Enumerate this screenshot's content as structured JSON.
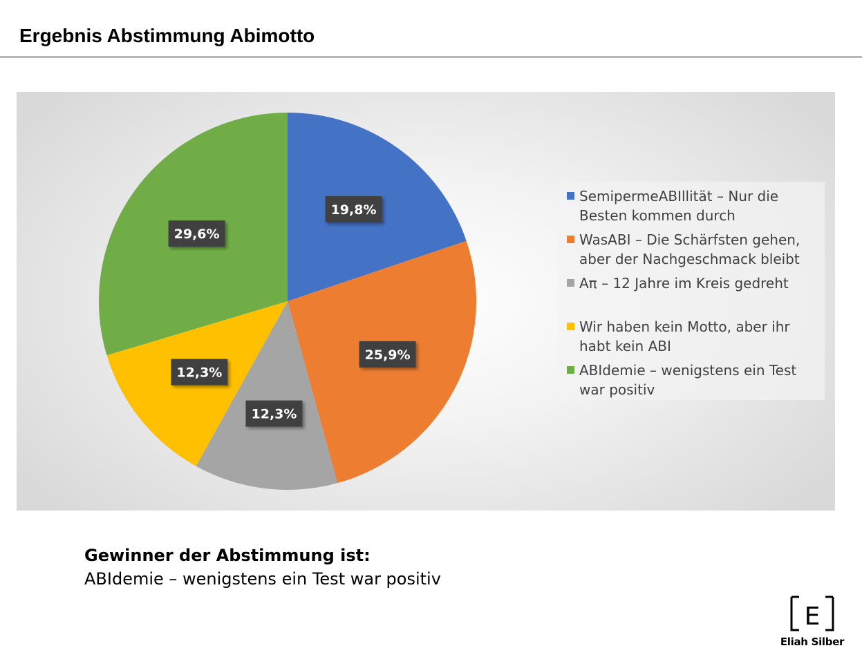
{
  "page": {
    "title": "Ergebnis Abstimmung Abimotto"
  },
  "chart_data": {
    "type": "pie",
    "title": "",
    "start_angle_deg": 0,
    "direction": "clockwise",
    "legend_position": "right",
    "categories": [
      "SemipermeABIllität – Nur die Besten kommen durch",
      "WasABI – Die Schärfsten gehen, aber der Nachgeschmack bleibt",
      "Aπ – 12 Jahre im Kreis gedreht",
      "Wir haben kein Motto, aber ihr habt kein ABI",
      "ABIdemie – wenigstens ein Test war positiv"
    ],
    "values": [
      19.8,
      25.9,
      12.3,
      12.3,
      29.6
    ],
    "data_labels": [
      "19,8%",
      "25,9%",
      "12,3%",
      "12,3%",
      "29,6%"
    ],
    "colors": [
      "#4472c4",
      "#ed7d31",
      "#a5a5a5",
      "#ffc000",
      "#70ad47"
    ]
  },
  "result": {
    "heading": "Gewinner der Abstimmung ist:",
    "winner": "ABIdemie – wenigstens ein Test war positiv"
  },
  "logo": {
    "icon": "letter-e-frame-icon",
    "letter": "E",
    "name": "Eliah Silber"
  }
}
